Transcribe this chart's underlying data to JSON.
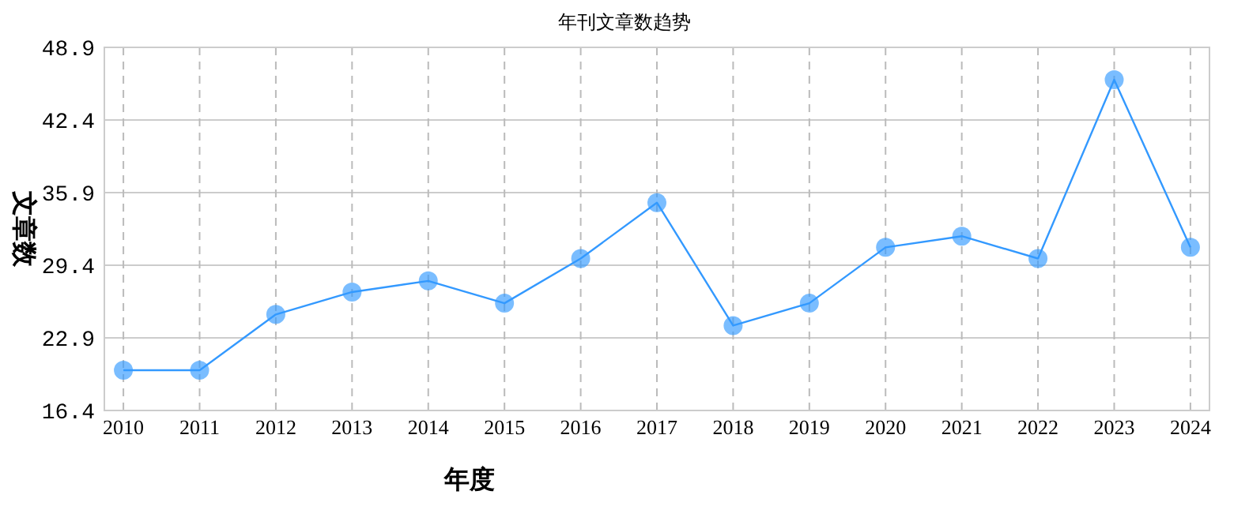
{
  "chart_data": {
    "type": "line",
    "title": "年刊文章数趋势",
    "xlabel": "年度",
    "ylabel": "文章数",
    "categories": [
      "2010",
      "2011",
      "2012",
      "2013",
      "2014",
      "2015",
      "2016",
      "2017",
      "2018",
      "2019",
      "2020",
      "2021",
      "2022",
      "2023",
      "2024"
    ],
    "series": [
      {
        "color": "#3399ff",
        "values": [
          20,
          20,
          25,
          27,
          28,
          26,
          30,
          35,
          24,
          26,
          31,
          32,
          30,
          46,
          31
        ]
      }
    ],
    "ylim": [
      16.4,
      48.9
    ],
    "yticks": [
      16.4,
      22.9,
      29.4,
      35.9,
      42.4,
      48.9
    ],
    "grid": true,
    "marker": "circle"
  }
}
